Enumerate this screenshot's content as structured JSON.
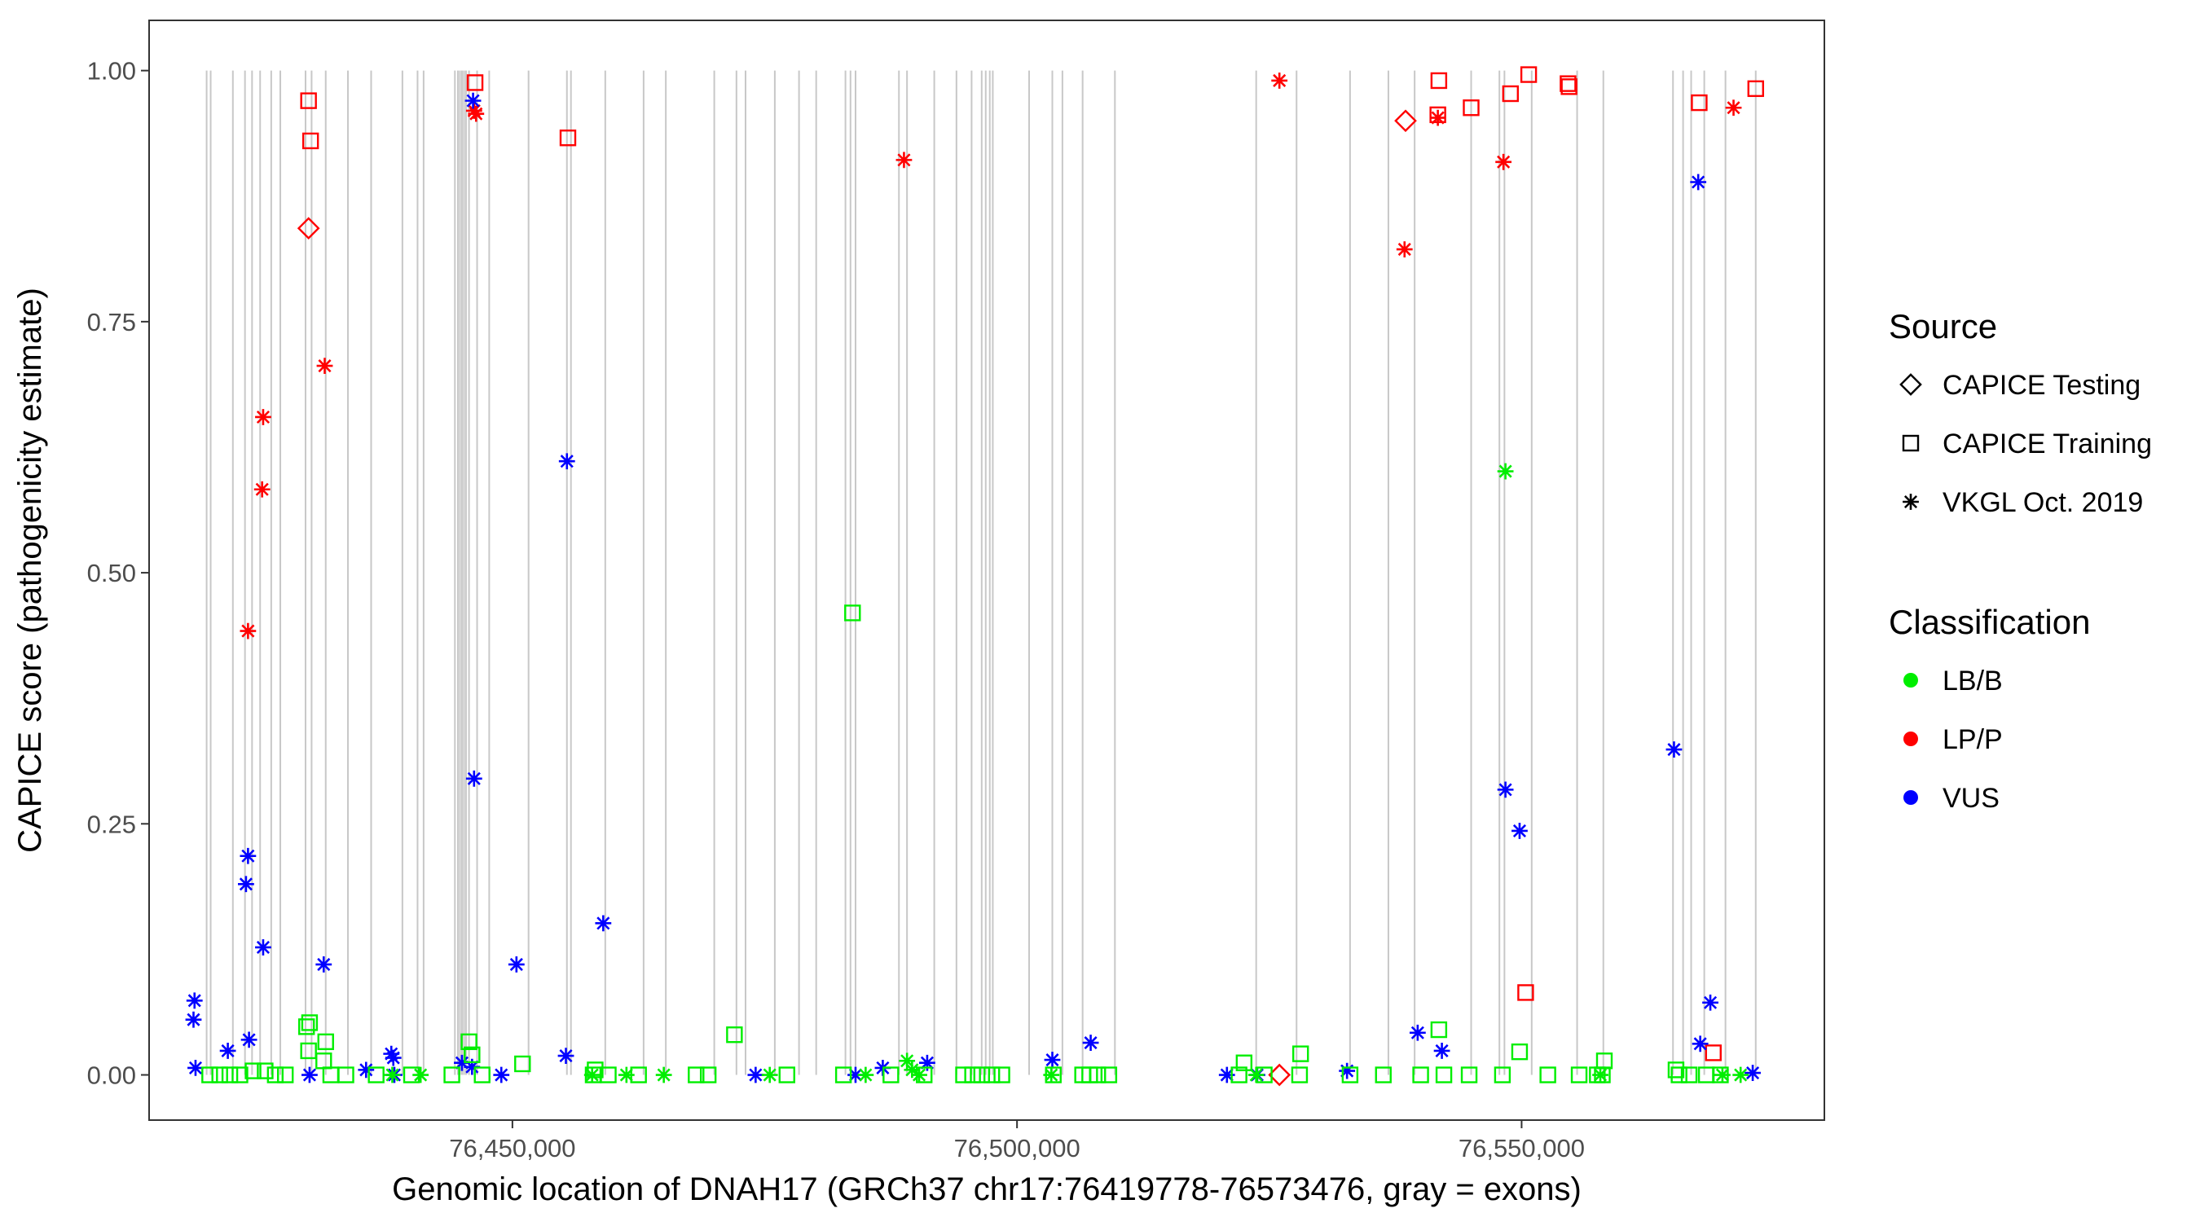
{
  "chart_data": {
    "type": "scatter",
    "xlabel": "Genomic location of DNAH17 (GRCh37 chr17:76419778-76573476, gray = exons)",
    "ylabel": "CAPICE score (pathogenicity estimate)",
    "xlim": [
      76414000,
      76580000
    ],
    "ylim": [
      -0.045,
      1.05
    ],
    "x_ticks": [
      76450000,
      76500000,
      76550000
    ],
    "x_tick_labels": [
      "76,450,000",
      "76,500,000",
      "76,550,000"
    ],
    "y_ticks": [
      0,
      0.25,
      0.5,
      0.75,
      1
    ],
    "y_tick_labels": [
      "0.00",
      "0.25",
      "0.50",
      "0.75",
      "1.00"
    ],
    "grid": false,
    "legend_position": "right",
    "exon_color": "#c8c8c8",
    "exons": [
      76419700,
      76420100,
      76422300,
      76423500,
      76424200,
      76425000,
      76426100,
      76427000,
      76429500,
      76430100,
      76431500,
      76433700,
      76436000,
      76439100,
      76440600,
      76441200,
      76444300,
      76444600,
      76444800,
      76445000,
      76445200,
      76445400,
      76445700,
      76446500,
      76447700,
      76451600,
      76455400,
      76455800,
      76459200,
      76463000,
      76465200,
      76470000,
      76472200,
      76473100,
      76476000,
      76478400,
      76480100,
      76483000,
      76483500,
      76484000,
      76488300,
      76489100,
      76491800,
      76494000,
      76495500,
      76496500,
      76496900,
      76497300,
      76497600,
      76501200,
      76503500,
      76504500,
      76506500,
      76509700,
      76523700,
      76527700,
      76533000,
      76536800,
      76539400,
      76545000,
      76547800,
      76548300,
      76551000,
      76555500,
      76558100,
      76565000,
      76566000,
      76566800,
      76568100,
      76570200,
      76573200
    ],
    "source_legend": {
      "title": "Source",
      "items": [
        {
          "name": "CAPICE Testing",
          "shape": "diamond"
        },
        {
          "name": "CAPICE Training",
          "shape": "square"
        },
        {
          "name": "VKGL Oct. 2019",
          "shape": "asterisk"
        }
      ]
    },
    "class_legend": {
      "title": "Classification",
      "items": [
        {
          "name": "LB/B",
          "color": "#00ee00"
        },
        {
          "name": "LP/P",
          "color": "#ff0000"
        },
        {
          "name": "VUS",
          "color": "#0000ff"
        }
      ]
    },
    "series": [
      {
        "source": "CAPICE Testing",
        "classification": "LP/P",
        "points": [
          [
            76429800,
            0.843
          ],
          [
            76538500,
            0.95
          ],
          [
            76526000,
            0.0
          ]
        ]
      },
      {
        "source": "CAPICE Training",
        "classification": "LP/P",
        "points": [
          [
            76429800,
            0.97
          ],
          [
            76430000,
            0.93
          ],
          [
            76446300,
            0.988
          ],
          [
            76455500,
            0.933
          ],
          [
            76541800,
            0.99
          ],
          [
            76541700,
            0.956
          ],
          [
            76545000,
            0.963
          ],
          [
            76548900,
            0.977
          ],
          [
            76550700,
            0.996
          ],
          [
            76554600,
            0.987
          ],
          [
            76554700,
            0.984
          ],
          [
            76567600,
            0.968
          ],
          [
            76573200,
            0.982
          ],
          [
            76550400,
            0.082
          ],
          [
            76569000,
            0.022
          ]
        ]
      },
      {
        "source": "VKGL Oct. 2019",
        "classification": "LP/P",
        "points": [
          [
            76446200,
            0.96
          ],
          [
            76446400,
            0.957
          ],
          [
            76425300,
            0.655
          ],
          [
            76425200,
            0.583
          ],
          [
            76431400,
            0.706
          ],
          [
            76423800,
            0.442
          ],
          [
            76488800,
            0.911
          ],
          [
            76526000,
            0.99
          ],
          [
            76541700,
            0.953
          ],
          [
            76538400,
            0.822
          ],
          [
            76548200,
            0.909
          ],
          [
            76571000,
            0.963
          ]
        ]
      },
      {
        "source": "VKGL Oct. 2019",
        "classification": "VUS",
        "points": [
          [
            76446100,
            0.97
          ],
          [
            76446200,
            0.295
          ],
          [
            76455400,
            0.611
          ],
          [
            76459000,
            0.151
          ],
          [
            76450400,
            0.11
          ],
          [
            76431300,
            0.11
          ],
          [
            76425300,
            0.127
          ],
          [
            76423800,
            0.218
          ],
          [
            76423600,
            0.19
          ],
          [
            76423900,
            0.035
          ],
          [
            76418500,
            0.074
          ],
          [
            76418400,
            0.055
          ],
          [
            76418600,
            0.007
          ],
          [
            76421800,
            0.024
          ],
          [
            76435500,
            0.005
          ],
          [
            76438000,
            0.021
          ],
          [
            76438200,
            0.017
          ],
          [
            76438300,
            0.0
          ],
          [
            76445000,
            0.012
          ],
          [
            76446000,
            0.008
          ],
          [
            76448900,
            0.0
          ],
          [
            76455300,
            0.019
          ],
          [
            76474100,
            0.0
          ],
          [
            76484000,
            0.0
          ],
          [
            76486700,
            0.007
          ],
          [
            76491100,
            0.012
          ],
          [
            76503500,
            0.015
          ],
          [
            76507300,
            0.032
          ],
          [
            76520800,
            0.0
          ],
          [
            76523800,
            0.0
          ],
          [
            76532700,
            0.004
          ],
          [
            76539700,
            0.042
          ],
          [
            76542100,
            0.024
          ],
          [
            76548400,
            0.284
          ],
          [
            76549800,
            0.243
          ],
          [
            76565100,
            0.324
          ],
          [
            76567500,
            0.889
          ],
          [
            76568700,
            0.072
          ],
          [
            76567700,
            0.031
          ],
          [
            76572900,
            0.002
          ],
          [
            76429900,
            0.0
          ]
        ]
      },
      {
        "source": "VKGL Oct. 2019",
        "classification": "LB/B",
        "points": [
          [
            76548400,
            0.601
          ],
          [
            76438100,
            0.0
          ],
          [
            76440900,
            0.0
          ],
          [
            76457900,
            0.0
          ],
          [
            76461300,
            0.0
          ],
          [
            76465000,
            0.0
          ],
          [
            76475500,
            0.0
          ],
          [
            76485000,
            0.0
          ],
          [
            76489100,
            0.014
          ],
          [
            76489600,
            0.005
          ],
          [
            76490300,
            0.0
          ],
          [
            76503400,
            0.0
          ],
          [
            76523700,
            0.0
          ],
          [
            76557800,
            0.0
          ],
          [
            76569900,
            0.0
          ],
          [
            76571700,
            0.0
          ]
        ]
      },
      {
        "source": "CAPICE Training",
        "classification": "LB/B",
        "points": [
          [
            76483700,
            0.46
          ],
          [
            76472000,
            0.04
          ],
          [
            76541800,
            0.045
          ],
          [
            76549800,
            0.023
          ],
          [
            76558200,
            0.014
          ],
          [
            76445700,
            0.033
          ],
          [
            76446000,
            0.02
          ],
          [
            76429600,
            0.048
          ],
          [
            76429900,
            0.052
          ],
          [
            76429800,
            0.024
          ],
          [
            76431500,
            0.033
          ],
          [
            76431300,
            0.014
          ],
          [
            76451000,
            0.011
          ],
          [
            76458200,
            0.005
          ],
          [
            76528100,
            0.021
          ],
          [
            76522500,
            0.012
          ],
          [
            76565300,
            0.005
          ],
          [
            76420000,
            0.0
          ],
          [
            76421000,
            0.0
          ],
          [
            76422000,
            0.0
          ],
          [
            76423000,
            0.0
          ],
          [
            76424300,
            0.004
          ],
          [
            76425500,
            0.004
          ],
          [
            76426500,
            0.0
          ],
          [
            76427500,
            0.0
          ],
          [
            76432000,
            0.0
          ],
          [
            76433500,
            0.0
          ],
          [
            76436500,
            0.0
          ],
          [
            76440000,
            0.0
          ],
          [
            76444000,
            0.0
          ],
          [
            76447000,
            0.0
          ],
          [
            76458000,
            0.0
          ],
          [
            76459500,
            0.0
          ],
          [
            76462500,
            0.0
          ],
          [
            76468200,
            0.0
          ],
          [
            76469400,
            0.0
          ],
          [
            76477200,
            0.0
          ],
          [
            76482800,
            0.0
          ],
          [
            76487500,
            0.0
          ],
          [
            76490800,
            0.0
          ],
          [
            76494700,
            0.0
          ],
          [
            76495600,
            0.0
          ],
          [
            76496500,
            0.0
          ],
          [
            76497500,
            0.0
          ],
          [
            76498500,
            0.0
          ],
          [
            76503600,
            0.0
          ],
          [
            76506500,
            0.0
          ],
          [
            76507200,
            0.0
          ],
          [
            76508000,
            0.0
          ],
          [
            76509100,
            0.0
          ],
          [
            76522000,
            0.0
          ],
          [
            76524500,
            0.0
          ],
          [
            76528000,
            0.0
          ],
          [
            76533000,
            0.0
          ],
          [
            76536300,
            0.0
          ],
          [
            76540000,
            0.0
          ],
          [
            76542300,
            0.0
          ],
          [
            76544800,
            0.0
          ],
          [
            76548100,
            0.0
          ],
          [
            76552600,
            0.0
          ],
          [
            76555700,
            0.0
          ],
          [
            76557500,
            0.0
          ],
          [
            76558000,
            0.0
          ],
          [
            76565600,
            0.0
          ],
          [
            76566600,
            0.0
          ],
          [
            76568300,
            0.0
          ],
          [
            76569700,
            0.0
          ]
        ]
      }
    ]
  }
}
